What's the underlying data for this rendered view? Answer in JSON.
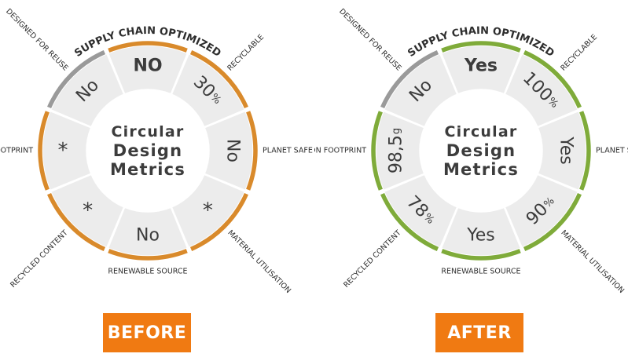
{
  "center_title": [
    "Circular",
    "Design",
    "Metrics"
  ],
  "colors": {
    "segment_fill": "#ececec",
    "segment_divider": "#ffffff",
    "inactive_ring": "#9a9a9a",
    "before_ring": "#d98a2b",
    "after_ring": "#7fab3a",
    "label_bg": "#f07a12",
    "text_dark": "#3c3c3c"
  },
  "dials": [
    {
      "id": "before",
      "state_label": "BEFORE",
      "ring_color": "#d98a2b",
      "segments": [
        {
          "metric": "SUPPLY CHAIN OPTIMIZED",
          "value": "NO",
          "ring": "active"
        },
        {
          "metric": "RECYCLABLE",
          "value": "30",
          "unit": "%",
          "ring": "active"
        },
        {
          "metric": "PLANET SAFE",
          "value": "No",
          "ring": "active"
        },
        {
          "metric": "MATERIAL UTILISATION",
          "value": "*",
          "ring": "active"
        },
        {
          "metric": "RENEWABLE SOURCE",
          "value": "No",
          "ring": "active"
        },
        {
          "metric": "RECYCLED CONTENT",
          "value": "*",
          "ring": "active"
        },
        {
          "metric": "CARBON FOOTPRINT",
          "value": "*",
          "ring": "active"
        },
        {
          "metric": "DESIGNED FOR REUSE",
          "value": "No",
          "ring": "inactive"
        }
      ]
    },
    {
      "id": "after",
      "state_label": "AFTER",
      "ring_color": "#7fab3a",
      "segments": [
        {
          "metric": "SUPPLY CHAIN OPTIMIZED",
          "value": "Yes",
          "ring": "active"
        },
        {
          "metric": "RECYCLABLE",
          "value": "100",
          "unit": "%",
          "ring": "active"
        },
        {
          "metric": "PLANET SAFE",
          "value": "Yes",
          "ring": "active"
        },
        {
          "metric": "MATERIAL UTILISATION",
          "value": "90",
          "unit": "%",
          "ring": "active"
        },
        {
          "metric": "RENEWABLE SOURCE",
          "value": "Yes",
          "ring": "active"
        },
        {
          "metric": "RECYCLED CONTENT",
          "value": "78",
          "unit": "%",
          "ring": "active"
        },
        {
          "metric": "CARBON FOOTPRINT",
          "value": "98,5",
          "unit": "g",
          "ring": "active"
        },
        {
          "metric": "DESIGNED FOR REUSE",
          "value": "No",
          "ring": "inactive"
        }
      ]
    }
  ]
}
